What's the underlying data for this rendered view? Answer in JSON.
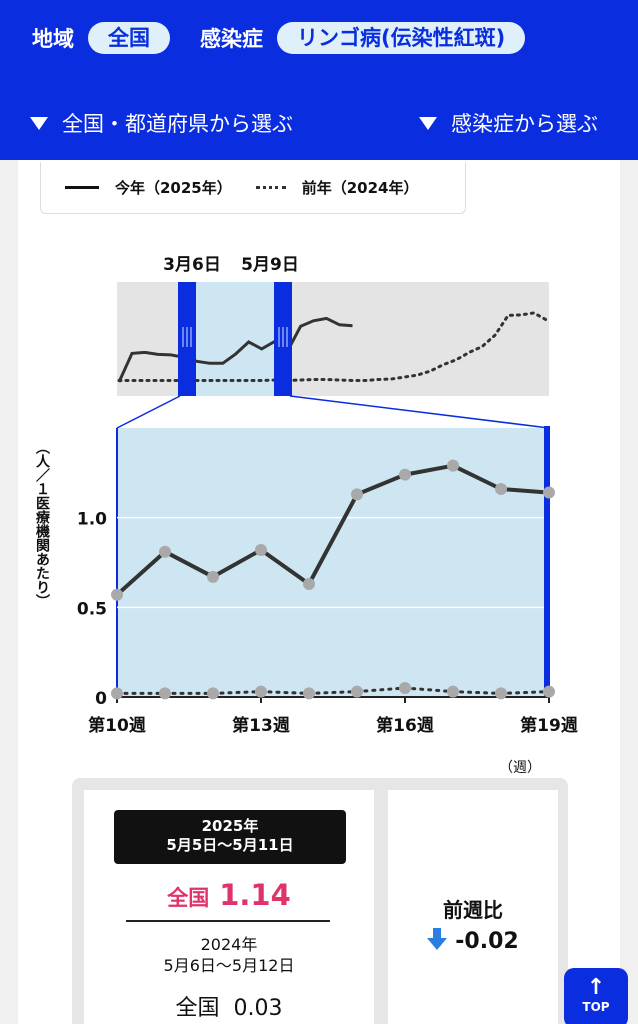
{
  "header": {
    "region_label": "地域",
    "region_value": "全国",
    "disease_label": "感染症",
    "disease_value": "リンゴ病(伝染性紅斑)",
    "select_region": "全国・都道府県から選ぶ",
    "select_disease": "感染症から選ぶ"
  },
  "legend": {
    "current": "今年（2025年）",
    "previous": "前年（2024年）"
  },
  "overview": {
    "range_start_label": "3月6日",
    "range_end_label": "5月9日",
    "current": [
      0.0,
      0.58,
      0.6,
      0.56,
      0.55,
      0.5,
      0.42,
      0.38,
      0.38,
      0.57,
      0.81,
      0.67,
      0.82,
      0.63,
      1.13,
      1.24,
      1.29,
      1.16,
      1.14
    ],
    "previous": [
      0.03,
      0.03,
      0.03,
      0.03,
      0.03,
      0.03,
      0.03,
      0.03,
      0.03,
      0.03,
      0.03,
      0.03,
      0.04,
      0.03,
      0.04,
      0.05,
      0.05,
      0.04,
      0.03,
      0.03,
      0.05,
      0.06,
      0.1,
      0.14,
      0.22,
      0.35,
      0.45,
      0.6,
      0.72,
      0.95,
      1.35,
      1.36,
      1.4,
      1.25
    ]
  },
  "chart_data": {
    "type": "line",
    "x_ticks": [
      "第10週",
      "第13週",
      "第16週",
      "第19週"
    ],
    "x_unit": "（週）",
    "ylabel": "（人／１医療機関あたり）",
    "y_ticks": [
      "0",
      "0.5",
      "1.0"
    ],
    "x": [
      10,
      11,
      12,
      13,
      14,
      15,
      16,
      17,
      18,
      19
    ],
    "ylim": [
      0,
      1.5
    ],
    "series": [
      {
        "name": "今年（2025年）",
        "style": "solid",
        "color": "#333333",
        "values": [
          0.57,
          0.81,
          0.67,
          0.82,
          0.63,
          1.13,
          1.24,
          1.29,
          1.16,
          1.14
        ]
      },
      {
        "name": "前年（2024年）",
        "style": "dotted",
        "color": "#333333",
        "values": [
          0.02,
          0.02,
          0.02,
          0.03,
          0.02,
          0.03,
          0.05,
          0.03,
          0.02,
          0.03
        ]
      }
    ],
    "plot_bg": "#cde6f1",
    "grid": true
  },
  "stats": {
    "current_year": "2025年",
    "current_range": "5月5日～5月11日",
    "current_region": "全国",
    "current_value": "1.14",
    "prev_year": "2024年",
    "prev_range": "5月6日～5月12日",
    "prev_region": "全国",
    "prev_value": "0.03",
    "week_compare_label": "前週比",
    "week_compare_value": "-0.02"
  },
  "top_button": "TOP",
  "colors": {
    "brand": "#0a2de0",
    "highlight": "#e0336a",
    "down_arrow": "#2b7ee0"
  }
}
